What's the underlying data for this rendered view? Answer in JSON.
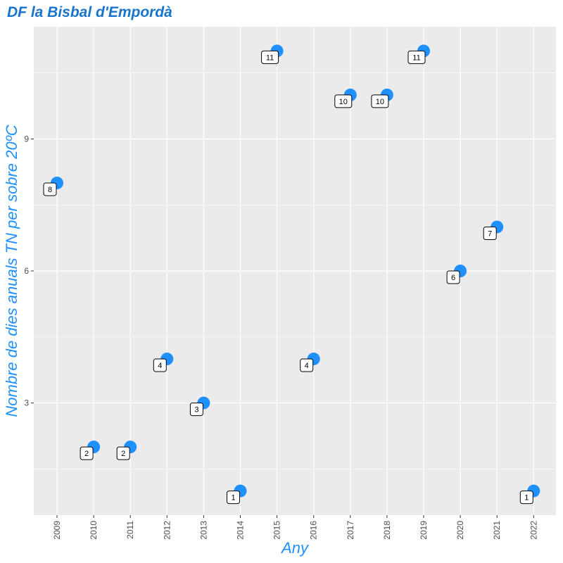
{
  "chart_data": {
    "type": "scatter",
    "title": "DF la Bisbal d'Empordà",
    "xlabel": "Any",
    "ylabel": "Nombre de dies anuals TN per sobre 20ºC",
    "x": [
      "2009",
      "2010",
      "2011",
      "2012",
      "2013",
      "2014",
      "2015",
      "2016",
      "2017",
      "2018",
      "2019",
      "2020",
      "2021",
      "2022"
    ],
    "values": [
      8,
      2,
      2,
      4,
      3,
      1,
      11,
      4,
      10,
      10,
      11,
      6,
      7,
      1
    ],
    "data_labels": [
      "8",
      "2",
      "2",
      "4",
      "3",
      "1",
      "11",
      "4",
      "10",
      "10",
      "11",
      "6",
      "7",
      "1"
    ],
    "yticks": [
      "3",
      "6",
      "9"
    ],
    "ylim": [
      0.45,
      11.55
    ],
    "grid": true,
    "colors": {
      "point": "#1E90FF",
      "title": "#1874CD",
      "panel": "#EBEBEB",
      "grid": "#FFFFFF"
    }
  }
}
